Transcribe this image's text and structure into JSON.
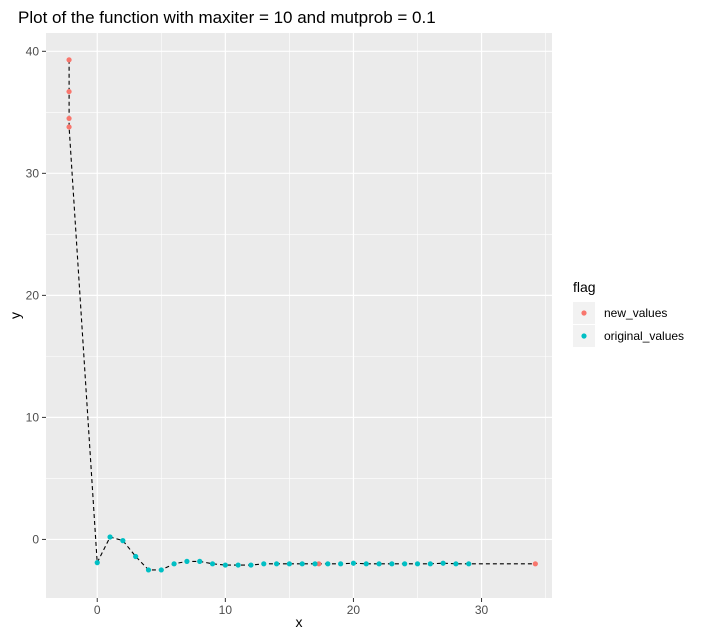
{
  "chart_data": {
    "type": "scatter",
    "title": "Plot of the function with maxiter = 10 and mutprob = 0.1",
    "xlabel": "x",
    "ylabel": "y",
    "xlim": [
      -4,
      35.5
    ],
    "ylim": [
      -4.8,
      41.5
    ],
    "x_ticks": [
      0,
      10,
      20,
      30
    ],
    "y_ticks": [
      0,
      10,
      20,
      30,
      40
    ],
    "x_tick_labels": [
      "0",
      "10",
      "20",
      "30"
    ],
    "y_tick_labels": [
      "0",
      "10",
      "20",
      "30",
      "40"
    ],
    "grid": true,
    "legend": {
      "title": "flag",
      "position": "right"
    },
    "line": {
      "style": "dashed",
      "color": "#000000",
      "points": [
        [
          -2.2,
          39.3
        ],
        [
          -2.2,
          36.7
        ],
        [
          -2.2,
          34.5
        ],
        [
          -2.2,
          33.8
        ],
        [
          0,
          -1.9
        ],
        [
          1,
          0.2
        ],
        [
          2,
          -0.1
        ],
        [
          3,
          -1.4
        ],
        [
          4,
          -2.5
        ],
        [
          5,
          -2.5
        ],
        [
          6,
          -2.0
        ],
        [
          7,
          -1.8
        ],
        [
          8,
          -1.8
        ],
        [
          9,
          -2.0
        ],
        [
          10,
          -2.1
        ],
        [
          11,
          -2.1
        ],
        [
          12,
          -2.1
        ],
        [
          13,
          -2.0
        ],
        [
          14,
          -2.0
        ],
        [
          15,
          -2.0
        ],
        [
          16,
          -2.0
        ],
        [
          17,
          -2.0
        ],
        [
          17.3,
          -2.0
        ],
        [
          18,
          -2.0
        ],
        [
          19,
          -2.0
        ],
        [
          20,
          -1.95
        ],
        [
          21,
          -2.0
        ],
        [
          22,
          -2.0
        ],
        [
          23,
          -2.0
        ],
        [
          24,
          -2.0
        ],
        [
          25,
          -2.0
        ],
        [
          26,
          -2.0
        ],
        [
          27,
          -1.95
        ],
        [
          28,
          -2.0
        ],
        [
          29,
          -2.0
        ],
        [
          34.2,
          -2.0
        ]
      ]
    },
    "series": [
      {
        "name": "new_values",
        "color": "#F8766D",
        "points": [
          [
            -2.2,
            39.3
          ],
          [
            -2.2,
            36.7
          ],
          [
            -2.2,
            34.5
          ],
          [
            -2.2,
            33.8
          ],
          [
            17.3,
            -2.0
          ],
          [
            34.2,
            -2.0
          ]
        ]
      },
      {
        "name": "original_values",
        "color": "#00BFC4",
        "points": [
          [
            0,
            -1.9
          ],
          [
            1,
            0.2
          ],
          [
            2,
            -0.1
          ],
          [
            3,
            -1.4
          ],
          [
            4,
            -2.5
          ],
          [
            5,
            -2.5
          ],
          [
            6,
            -2.0
          ],
          [
            7,
            -1.8
          ],
          [
            8,
            -1.8
          ],
          [
            9,
            -2.0
          ],
          [
            10,
            -2.1
          ],
          [
            11,
            -2.1
          ],
          [
            12,
            -2.1
          ],
          [
            13,
            -2.0
          ],
          [
            14,
            -2.0
          ],
          [
            15,
            -2.0
          ],
          [
            16,
            -2.0
          ],
          [
            17,
            -2.0
          ],
          [
            18,
            -2.0
          ],
          [
            19,
            -2.0
          ],
          [
            20,
            -1.95
          ],
          [
            21,
            -2.0
          ],
          [
            22,
            -2.0
          ],
          [
            23,
            -2.0
          ],
          [
            24,
            -2.0
          ],
          [
            25,
            -2.0
          ],
          [
            26,
            -2.0
          ],
          [
            27,
            -1.95
          ],
          [
            28,
            -2.0
          ],
          [
            29,
            -2.0
          ]
        ]
      }
    ],
    "colors": {
      "panel_background": "#EBEBEB",
      "grid_major": "#FFFFFF",
      "axis_text": "#4D4D4D"
    }
  }
}
